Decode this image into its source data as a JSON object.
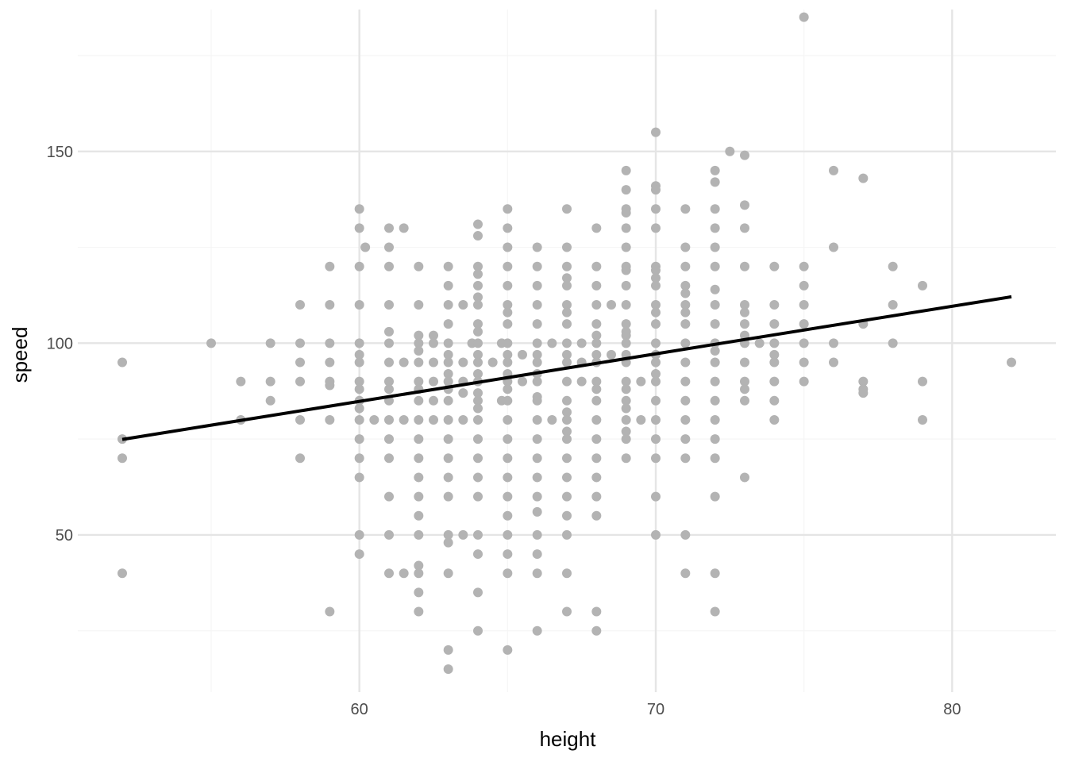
{
  "chart_data": {
    "type": "scatter",
    "title": "",
    "xlabel": "height",
    "ylabel": "speed",
    "xlim": [
      50.5,
      83.5
    ],
    "ylim": [
      9,
      187
    ],
    "x_ticks": [
      60,
      70,
      80
    ],
    "y_ticks": [
      50,
      100,
      150
    ],
    "x_minor_ticks": [
      55,
      65,
      75
    ],
    "y_minor_ticks": [
      25,
      75,
      125,
      175
    ],
    "grid": true,
    "legend": "none",
    "colors": {
      "points": "#b3b3b3",
      "line": "#000000",
      "grid_major": "#e5e5e5",
      "grid_minor": "#f5f5f5",
      "tick_text": "#4d4d4d"
    },
    "trend_line": {
      "x": [
        52,
        82
      ],
      "y": [
        74.9,
        112.1
      ]
    },
    "points": [
      [
        52,
        95
      ],
      [
        52,
        75
      ],
      [
        52,
        70
      ],
      [
        52,
        40
      ],
      [
        55,
        100
      ],
      [
        56,
        90
      ],
      [
        56,
        80
      ],
      [
        57,
        100
      ],
      [
        57,
        90
      ],
      [
        57,
        85
      ],
      [
        58,
        110
      ],
      [
        58,
        100
      ],
      [
        58,
        95
      ],
      [
        58,
        90
      ],
      [
        58,
        80
      ],
      [
        58,
        70
      ],
      [
        59,
        120
      ],
      [
        59,
        110
      ],
      [
        59,
        100
      ],
      [
        59,
        95
      ],
      [
        59,
        90
      ],
      [
        59,
        89
      ],
      [
        59,
        80
      ],
      [
        59,
        30
      ],
      [
        60,
        135
      ],
      [
        60,
        130
      ],
      [
        60,
        120
      ],
      [
        60,
        110
      ],
      [
        60,
        100
      ],
      [
        60,
        97
      ],
      [
        60,
        95
      ],
      [
        60,
        90
      ],
      [
        60,
        88
      ],
      [
        60,
        85
      ],
      [
        60,
        83
      ],
      [
        60,
        80
      ],
      [
        60,
        75
      ],
      [
        60,
        70
      ],
      [
        60,
        65
      ],
      [
        60,
        50
      ],
      [
        60,
        45
      ],
      [
        60.2,
        125
      ],
      [
        60.5,
        80
      ],
      [
        61,
        130
      ],
      [
        61,
        125
      ],
      [
        61,
        120
      ],
      [
        61,
        110
      ],
      [
        61,
        103
      ],
      [
        61,
        100
      ],
      [
        61,
        95
      ],
      [
        61,
        90
      ],
      [
        61,
        88
      ],
      [
        61,
        85
      ],
      [
        61,
        80
      ],
      [
        61,
        75
      ],
      [
        61,
        70
      ],
      [
        61,
        60
      ],
      [
        61,
        50
      ],
      [
        61,
        40
      ],
      [
        61.5,
        130
      ],
      [
        61.5,
        95
      ],
      [
        61.5,
        80
      ],
      [
        61.5,
        40
      ],
      [
        62,
        120
      ],
      [
        62,
        110
      ],
      [
        62,
        102
      ],
      [
        62,
        100
      ],
      [
        62,
        98
      ],
      [
        62,
        95
      ],
      [
        62,
        90
      ],
      [
        62,
        88
      ],
      [
        62,
        85
      ],
      [
        62,
        80
      ],
      [
        62,
        75
      ],
      [
        62,
        70
      ],
      [
        62,
        65
      ],
      [
        62,
        60
      ],
      [
        62,
        55
      ],
      [
        62,
        50
      ],
      [
        62,
        42
      ],
      [
        62,
        40
      ],
      [
        62,
        35
      ],
      [
        62,
        30
      ],
      [
        62.5,
        102
      ],
      [
        62.5,
        100
      ],
      [
        62.5,
        95
      ],
      [
        62.5,
        90
      ],
      [
        62.5,
        85
      ],
      [
        62.5,
        80
      ],
      [
        63,
        120
      ],
      [
        63,
        115
      ],
      [
        63,
        110
      ],
      [
        63,
        105
      ],
      [
        63,
        100
      ],
      [
        63,
        97
      ],
      [
        63,
        95
      ],
      [
        63,
        92
      ],
      [
        63,
        90
      ],
      [
        63,
        88
      ],
      [
        63,
        85
      ],
      [
        63,
        80
      ],
      [
        63,
        75
      ],
      [
        63,
        70
      ],
      [
        63,
        65
      ],
      [
        63,
        60
      ],
      [
        63,
        50
      ],
      [
        63,
        48
      ],
      [
        63,
        40
      ],
      [
        63,
        20
      ],
      [
        63,
        15
      ],
      [
        63.5,
        110
      ],
      [
        63.5,
        95
      ],
      [
        63.5,
        90
      ],
      [
        63.5,
        87
      ],
      [
        63.5,
        80
      ],
      [
        63.5,
        50
      ],
      [
        63.8,
        100
      ],
      [
        64,
        131
      ],
      [
        64,
        128
      ],
      [
        64,
        120
      ],
      [
        64,
        118
      ],
      [
        64,
        115
      ],
      [
        64,
        112
      ],
      [
        64,
        110
      ],
      [
        64,
        105
      ],
      [
        64,
        103
      ],
      [
        64,
        100
      ],
      [
        64,
        97
      ],
      [
        64,
        95
      ],
      [
        64,
        92
      ],
      [
        64,
        90
      ],
      [
        64,
        87
      ],
      [
        64,
        85
      ],
      [
        64,
        83
      ],
      [
        64,
        80
      ],
      [
        64,
        75
      ],
      [
        64,
        70
      ],
      [
        64,
        65
      ],
      [
        64,
        60
      ],
      [
        64,
        50
      ],
      [
        64,
        45
      ],
      [
        64,
        35
      ],
      [
        64,
        25
      ],
      [
        64.5,
        95
      ],
      [
        64.8,
        100
      ],
      [
        64.8,
        85
      ],
      [
        65,
        135
      ],
      [
        65,
        130
      ],
      [
        65,
        125
      ],
      [
        65,
        120
      ],
      [
        65,
        115
      ],
      [
        65,
        110
      ],
      [
        65,
        108
      ],
      [
        65,
        105
      ],
      [
        65,
        100
      ],
      [
        65,
        97
      ],
      [
        65,
        95
      ],
      [
        65,
        92
      ],
      [
        65,
        90
      ],
      [
        65,
        88
      ],
      [
        65,
        85
      ],
      [
        65,
        80
      ],
      [
        65,
        75
      ],
      [
        65,
        70
      ],
      [
        65,
        65
      ],
      [
        65,
        60
      ],
      [
        65,
        55
      ],
      [
        65,
        50
      ],
      [
        65,
        45
      ],
      [
        65,
        40
      ],
      [
        65,
        20
      ],
      [
        65.5,
        97
      ],
      [
        65.5,
        90
      ],
      [
        66,
        125
      ],
      [
        66,
        120
      ],
      [
        66,
        115
      ],
      [
        66,
        110
      ],
      [
        66,
        105
      ],
      [
        66,
        100
      ],
      [
        66,
        97
      ],
      [
        66,
        95
      ],
      [
        66,
        92
      ],
      [
        66,
        90
      ],
      [
        66,
        86
      ],
      [
        66,
        85
      ],
      [
        66,
        80
      ],
      [
        66,
        75
      ],
      [
        66,
        70
      ],
      [
        66,
        65
      ],
      [
        66,
        60
      ],
      [
        66,
        56
      ],
      [
        66,
        50
      ],
      [
        66,
        45
      ],
      [
        66,
        40
      ],
      [
        66,
        25
      ],
      [
        66.5,
        100
      ],
      [
        66.5,
        80
      ],
      [
        67,
        135
      ],
      [
        67,
        125
      ],
      [
        67,
        120
      ],
      [
        67,
        117
      ],
      [
        67,
        115
      ],
      [
        67,
        110
      ],
      [
        67,
        108
      ],
      [
        67,
        105
      ],
      [
        67,
        100
      ],
      [
        67,
        97
      ],
      [
        67,
        95
      ],
      [
        67,
        90
      ],
      [
        67,
        85
      ],
      [
        67,
        82
      ],
      [
        67,
        80
      ],
      [
        67,
        77
      ],
      [
        67,
        75
      ],
      [
        67,
        70
      ],
      [
        67,
        65
      ],
      [
        67,
        60
      ],
      [
        67,
        55
      ],
      [
        67,
        50
      ],
      [
        67,
        40
      ],
      [
        67,
        30
      ],
      [
        67.5,
        100
      ],
      [
        67.5,
        95
      ],
      [
        67.5,
        90
      ],
      [
        68,
        130
      ],
      [
        68,
        120
      ],
      [
        68,
        115
      ],
      [
        68,
        110
      ],
      [
        68,
        105
      ],
      [
        68,
        102
      ],
      [
        68,
        100
      ],
      [
        68,
        97
      ],
      [
        68,
        95
      ],
      [
        68,
        90
      ],
      [
        68,
        88
      ],
      [
        68,
        85
      ],
      [
        68,
        80
      ],
      [
        68,
        75
      ],
      [
        68,
        70
      ],
      [
        68,
        65
      ],
      [
        68,
        60
      ],
      [
        68,
        55
      ],
      [
        68,
        30
      ],
      [
        68,
        25
      ],
      [
        68.5,
        110
      ],
      [
        68.5,
        97
      ],
      [
        69,
        145
      ],
      [
        69,
        140
      ],
      [
        69,
        135
      ],
      [
        69,
        134
      ],
      [
        69,
        130
      ],
      [
        69,
        125
      ],
      [
        69,
        120
      ],
      [
        69,
        119
      ],
      [
        69,
        115
      ],
      [
        69,
        110
      ],
      [
        69,
        105
      ],
      [
        69,
        103
      ],
      [
        69,
        102
      ],
      [
        69,
        100
      ],
      [
        69,
        97
      ],
      [
        69,
        95
      ],
      [
        69,
        90
      ],
      [
        69,
        88
      ],
      [
        69,
        85
      ],
      [
        69,
        83
      ],
      [
        69,
        80
      ],
      [
        69,
        77
      ],
      [
        69,
        75
      ],
      [
        69,
        70
      ],
      [
        69.5,
        90
      ],
      [
        69.5,
        80
      ],
      [
        70,
        155
      ],
      [
        70,
        141
      ],
      [
        70,
        140
      ],
      [
        70,
        135
      ],
      [
        70,
        130
      ],
      [
        70,
        120
      ],
      [
        70,
        119
      ],
      [
        70,
        117
      ],
      [
        70,
        115
      ],
      [
        70,
        110
      ],
      [
        70,
        108
      ],
      [
        70,
        105
      ],
      [
        70,
        100
      ],
      [
        70,
        97
      ],
      [
        70,
        95
      ],
      [
        70,
        92
      ],
      [
        70,
        90
      ],
      [
        70,
        85
      ],
      [
        70,
        80
      ],
      [
        70,
        75
      ],
      [
        70,
        70
      ],
      [
        70,
        60
      ],
      [
        70,
        50
      ],
      [
        71,
        135
      ],
      [
        71,
        125
      ],
      [
        71,
        120
      ],
      [
        71,
        115
      ],
      [
        71,
        113
      ],
      [
        71,
        110
      ],
      [
        71,
        108
      ],
      [
        71,
        105
      ],
      [
        71,
        100
      ],
      [
        71,
        95
      ],
      [
        71,
        90
      ],
      [
        71,
        85
      ],
      [
        71,
        80
      ],
      [
        71,
        75
      ],
      [
        71,
        70
      ],
      [
        71,
        50
      ],
      [
        71,
        40
      ],
      [
        72,
        145
      ],
      [
        72,
        142
      ],
      [
        72,
        135
      ],
      [
        72,
        130
      ],
      [
        72,
        125
      ],
      [
        72,
        120
      ],
      [
        72,
        114
      ],
      [
        72,
        110
      ],
      [
        72,
        105
      ],
      [
        72,
        100
      ],
      [
        72,
        98
      ],
      [
        72,
        95
      ],
      [
        72,
        90
      ],
      [
        72,
        85
      ],
      [
        72,
        80
      ],
      [
        72,
        75
      ],
      [
        72,
        70
      ],
      [
        72,
        60
      ],
      [
        72,
        40
      ],
      [
        72,
        30
      ],
      [
        72.5,
        150
      ],
      [
        73,
        149
      ],
      [
        73,
        136
      ],
      [
        73,
        130
      ],
      [
        73,
        120
      ],
      [
        73,
        110
      ],
      [
        73,
        108
      ],
      [
        73,
        105
      ],
      [
        73,
        102
      ],
      [
        73,
        100
      ],
      [
        73,
        95
      ],
      [
        73,
        90
      ],
      [
        73,
        88
      ],
      [
        73,
        85
      ],
      [
        73,
        65
      ],
      [
        73.5,
        100
      ],
      [
        74,
        120
      ],
      [
        74,
        110
      ],
      [
        74,
        105
      ],
      [
        74,
        100
      ],
      [
        74,
        97
      ],
      [
        74,
        95
      ],
      [
        74,
        90
      ],
      [
        74,
        85
      ],
      [
        74,
        80
      ],
      [
        75,
        185
      ],
      [
        75,
        120
      ],
      [
        75,
        115
      ],
      [
        75,
        110
      ],
      [
        75,
        105
      ],
      [
        75,
        100
      ],
      [
        75,
        95
      ],
      [
        75,
        90
      ],
      [
        76,
        145
      ],
      [
        76,
        125
      ],
      [
        76,
        100
      ],
      [
        76,
        95
      ],
      [
        77,
        143
      ],
      [
        77,
        105
      ],
      [
        77,
        90
      ],
      [
        77,
        88
      ],
      [
        77,
        87
      ],
      [
        78,
        120
      ],
      [
        78,
        110
      ],
      [
        78,
        100
      ],
      [
        79,
        115
      ],
      [
        79,
        90
      ],
      [
        79,
        80
      ],
      [
        82,
        95
      ]
    ]
  }
}
